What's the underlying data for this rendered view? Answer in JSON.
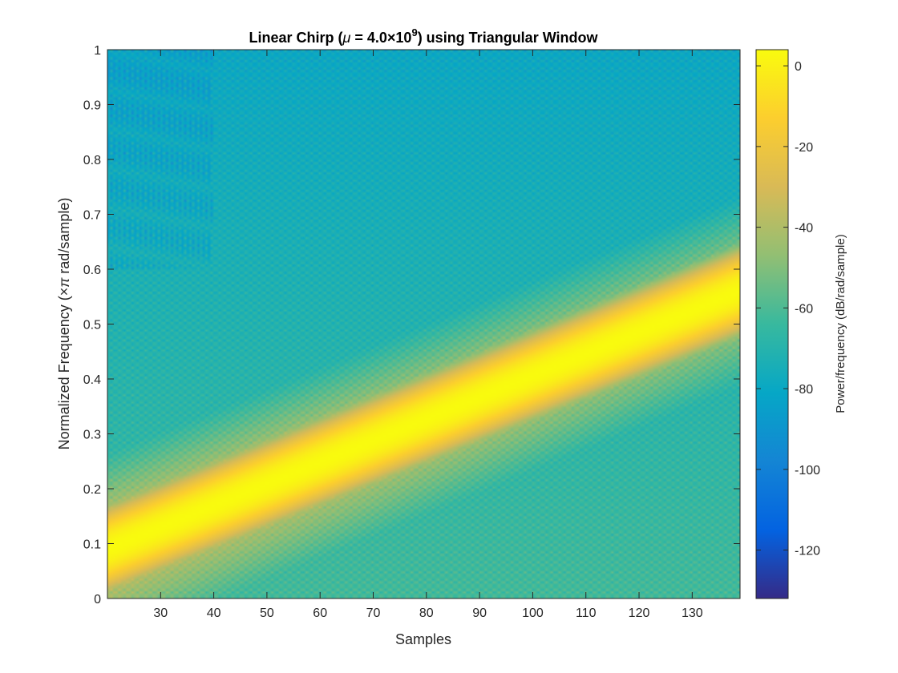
{
  "chart_data": {
    "type": "heatmap",
    "title": {
      "prefix": "Linear Chirp (",
      "mu": "μ",
      "equals": " = 4.0",
      "times": "×",
      "base": "10",
      "exponent": "9",
      "suffix": ") using Triangular Window"
    },
    "xlabel": "Samples",
    "ylabel": {
      "main": "Normalized Frequency  (",
      "times": "×",
      "pi": "π",
      "rest": " rad/sample)"
    },
    "colorbar_label": "Power/frequency (dB/rad/sample)",
    "xlim": [
      20,
      139
    ],
    "ylim": [
      0,
      1
    ],
    "clim": [
      -132,
      4
    ],
    "x_ticks": [
      "30",
      "40",
      "50",
      "60",
      "70",
      "80",
      "90",
      "100",
      "110",
      "120",
      "130"
    ],
    "x_tick_values": [
      30,
      40,
      50,
      60,
      70,
      80,
      90,
      100,
      110,
      120,
      130
    ],
    "y_ticks": [
      "0",
      "0.1",
      "0.2",
      "0.3",
      "0.4",
      "0.5",
      "0.6",
      "0.7",
      "0.8",
      "0.9",
      "1"
    ],
    "y_tick_values": [
      0,
      0.1,
      0.2,
      0.3,
      0.4,
      0.5,
      0.6,
      0.7,
      0.8,
      0.9,
      1
    ],
    "colorbar_ticks": [
      "0",
      "-20",
      "-40",
      "-60",
      "-80",
      "-100",
      "-120"
    ],
    "colorbar_tick_values": [
      0,
      -20,
      -40,
      -60,
      -80,
      -100,
      -120
    ],
    "ridge": {
      "x": [
        20,
        139
      ],
      "frequency": [
        0.09,
        0.56
      ]
    },
    "peak_db": 4,
    "background_db": {
      "low_freq": -62,
      "high_freq": -80
    },
    "colormap": "parula",
    "colormap_stops": [
      "#352a87",
      "#0363e1",
      "#1485d4",
      "#06a7c6",
      "#38b99e",
      "#92bf73",
      "#d9ba56",
      "#fcce2e",
      "#f9fb0e"
    ]
  }
}
